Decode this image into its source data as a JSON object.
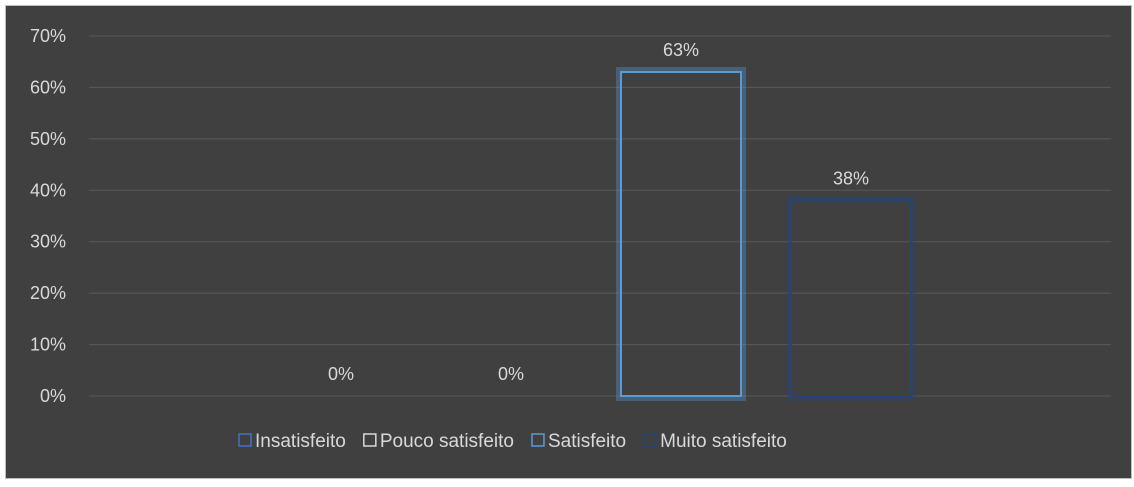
{
  "chart_data": {
    "type": "bar",
    "categories": [
      "Insatisfeito",
      "Pouco satisfeito",
      "Satisfeito",
      "Muito satisfeito"
    ],
    "values": [
      0,
      0,
      63,
      38
    ],
    "value_labels": [
      "0%",
      "0%",
      "63%",
      "38%"
    ],
    "ylim": [
      0,
      70
    ],
    "yticks": [
      "0%",
      "10%",
      "20%",
      "30%",
      "40%",
      "50%",
      "60%",
      "70%"
    ],
    "grid": true,
    "legend_position": "bottom",
    "colors": [
      "#4472c4",
      "#d9d9d9",
      "#5b9bd5",
      "#264478"
    ],
    "background": "#404040"
  }
}
